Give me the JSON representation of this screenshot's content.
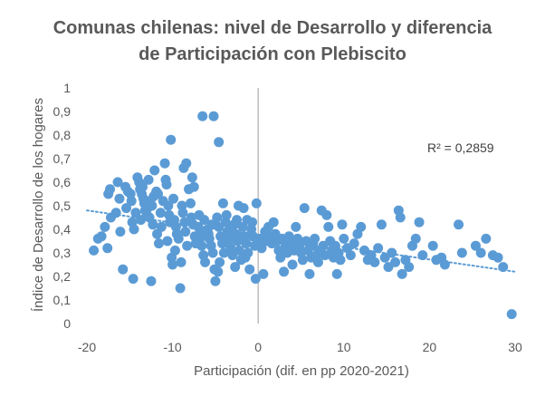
{
  "chart_data": {
    "type": "scatter",
    "title_lines": [
      "Comunas chilenas: nivel de Desarrollo y diferencia",
      "de Participación con Plebiscito"
    ],
    "xlabel": "Participación (dif. en pp 2020-2021)",
    "ylabel": "Índice de Desarrollo de los hogares",
    "xlim": [
      -20,
      30
    ],
    "ylim": [
      0,
      1
    ],
    "x_ticks": [
      -20,
      -10,
      0,
      10,
      20,
      30
    ],
    "x_tick_labels": [
      "-20",
      "-10",
      "0",
      "10",
      "20",
      "30"
    ],
    "y_ticks": [
      0,
      0.1,
      0.2,
      0.3,
      0.4,
      0.5,
      0.6,
      0.7,
      0.8,
      0.9,
      1
    ],
    "y_tick_labels": [
      "0",
      "0,1",
      "0,2",
      "0,3",
      "0,4",
      "0,5",
      "0,6",
      "0,7",
      "0,8",
      "0,9",
      "1"
    ],
    "grid": false,
    "zero_line_x": 0,
    "annotation": "R² = 0,2859",
    "marker_color": "#5B9BD5",
    "trendline": {
      "style": "dotted",
      "color": "#5B9BD5",
      "x": [
        -20,
        30
      ],
      "y": [
        0.48,
        0.22
      ]
    },
    "points": [
      [
        -6.5,
        0.88
      ],
      [
        -5.2,
        0.88
      ],
      [
        -4.6,
        0.77
      ],
      [
        -10.2,
        0.78
      ],
      [
        -19.2,
        0.31
      ],
      [
        -18.7,
        0.36
      ],
      [
        -18.3,
        0.37
      ],
      [
        -17.6,
        0.32
      ],
      [
        -17.9,
        0.41
      ],
      [
        -17.2,
        0.45
      ],
      [
        -17.5,
        0.55
      ],
      [
        -17.3,
        0.57
      ],
      [
        -16.4,
        0.6
      ],
      [
        -16.2,
        0.53
      ],
      [
        -16.6,
        0.47
      ],
      [
        -16.1,
        0.39
      ],
      [
        -15.8,
        0.23
      ],
      [
        -15.5,
        0.58
      ],
      [
        -15.2,
        0.56
      ],
      [
        -15.4,
        0.49
      ],
      [
        -14.9,
        0.55
      ],
      [
        -14.7,
        0.43
      ],
      [
        -14.5,
        0.4
      ],
      [
        -14.3,
        0.47
      ],
      [
        -14.8,
        0.52
      ],
      [
        -14.6,
        0.19
      ],
      [
        -14.1,
        0.62
      ],
      [
        -13.9,
        0.6
      ],
      [
        -13.8,
        0.57
      ],
      [
        -13.6,
        0.55
      ],
      [
        -13.4,
        0.53
      ],
      [
        -13.3,
        0.51
      ],
      [
        -13.2,
        0.48
      ],
      [
        -13.0,
        0.46
      ],
      [
        -13.7,
        0.44
      ],
      [
        -13.5,
        0.58
      ],
      [
        -12.8,
        0.61
      ],
      [
        -12.6,
        0.52
      ],
      [
        -12.9,
        0.49
      ],
      [
        -12.4,
        0.5
      ],
      [
        -12.2,
        0.54
      ],
      [
        -12.7,
        0.45
      ],
      [
        -12.3,
        0.42
      ],
      [
        -12.5,
        0.18
      ],
      [
        -12.1,
        0.65
      ],
      [
        -11.9,
        0.56
      ],
      [
        -11.8,
        0.38
      ],
      [
        -11.6,
        0.34
      ],
      [
        -11.4,
        0.47
      ],
      [
        -11.3,
        0.41
      ],
      [
        -11.1,
        0.52
      ],
      [
        -11.7,
        0.55
      ],
      [
        -10.9,
        0.68
      ],
      [
        -10.8,
        0.61
      ],
      [
        -10.7,
        0.59
      ],
      [
        -10.5,
        0.5
      ],
      [
        -10.4,
        0.46
      ],
      [
        -10.3,
        0.43
      ],
      [
        -10.6,
        0.35
      ],
      [
        -10.1,
        0.28
      ],
      [
        -10.0,
        0.25
      ],
      [
        -9.9,
        0.53
      ],
      [
        -9.8,
        0.44
      ],
      [
        -9.6,
        0.41
      ],
      [
        -9.5,
        0.38
      ],
      [
        -9.3,
        0.36
      ],
      [
        -9.7,
        0.31
      ],
      [
        -9.1,
        0.15
      ],
      [
        -9.0,
        0.26
      ],
      [
        -8.9,
        0.5
      ],
      [
        -8.8,
        0.47
      ],
      [
        -8.6,
        0.43
      ],
      [
        -8.5,
        0.39
      ],
      [
        -8.3,
        0.33
      ],
      [
        -8.7,
        0.66
      ],
      [
        -8.4,
        0.68
      ],
      [
        -8.1,
        0.57
      ],
      [
        -7.9,
        0.51
      ],
      [
        -7.8,
        0.45
      ],
      [
        -7.6,
        0.42
      ],
      [
        -7.4,
        0.37
      ],
      [
        -7.3,
        0.34
      ],
      [
        -7.7,
        0.62
      ],
      [
        -7.5,
        0.58
      ],
      [
        -7.0,
        0.41
      ],
      [
        -6.8,
        0.36
      ],
      [
        -6.6,
        0.33
      ],
      [
        -6.4,
        0.29
      ],
      [
        -6.2,
        0.26
      ],
      [
        -6.9,
        0.46
      ],
      [
        -6.7,
        0.39
      ],
      [
        -6.3,
        0.44
      ],
      [
        -5.9,
        0.4
      ],
      [
        -5.7,
        0.36
      ],
      [
        -5.5,
        0.33
      ],
      [
        -5.3,
        0.3
      ],
      [
        -5.1,
        0.23
      ],
      [
        -5.0,
        0.18
      ],
      [
        -5.4,
        0.42
      ],
      [
        -5.8,
        0.38
      ],
      [
        -4.8,
        0.45
      ],
      [
        -4.6,
        0.41
      ],
      [
        -4.4,
        0.37
      ],
      [
        -4.2,
        0.34
      ],
      [
        -4.0,
        0.3
      ],
      [
        -4.7,
        0.22
      ],
      [
        -4.1,
        0.51
      ],
      [
        -4.5,
        0.26
      ],
      [
        -3.8,
        0.43
      ],
      [
        -3.6,
        0.39
      ],
      [
        -3.4,
        0.36
      ],
      [
        -3.2,
        0.32
      ],
      [
        -3.0,
        0.29
      ],
      [
        -3.7,
        0.46
      ],
      [
        -3.3,
        0.4
      ],
      [
        -3.5,
        0.34
      ],
      [
        -2.8,
        0.42
      ],
      [
        -2.6,
        0.38
      ],
      [
        -2.4,
        0.35
      ],
      [
        -2.2,
        0.31
      ],
      [
        -2.0,
        0.27
      ],
      [
        -2.7,
        0.24
      ],
      [
        -2.3,
        0.5
      ],
      [
        -2.5,
        0.44
      ],
      [
        -1.8,
        0.41
      ],
      [
        -1.6,
        0.37
      ],
      [
        -1.4,
        0.34
      ],
      [
        -1.2,
        0.3
      ],
      [
        -1.0,
        0.23
      ],
      [
        -1.7,
        0.49
      ],
      [
        -1.3,
        0.44
      ],
      [
        -1.5,
        0.28
      ],
      [
        -0.8,
        0.4
      ],
      [
        -0.6,
        0.37
      ],
      [
        -0.4,
        0.33
      ],
      [
        -0.2,
        0.51
      ],
      [
        -0.3,
        0.19
      ],
      [
        -0.7,
        0.43
      ],
      [
        0.2,
        0.36
      ],
      [
        0.4,
        0.32
      ],
      [
        0.6,
        0.21
      ],
      [
        0.8,
        0.39
      ],
      [
        1.0,
        0.35
      ],
      [
        1.2,
        0.41
      ],
      [
        1.4,
        0.37
      ],
      [
        1.6,
        0.34
      ],
      [
        1.8,
        0.43
      ],
      [
        2.0,
        0.38
      ],
      [
        2.2,
        0.35
      ],
      [
        2.4,
        0.31
      ],
      [
        2.6,
        0.28
      ],
      [
        2.8,
        0.36
      ],
      [
        3.0,
        0.22
      ],
      [
        3.2,
        0.33
      ],
      [
        3.4,
        0.3
      ],
      [
        3.6,
        0.37
      ],
      [
        3.8,
        0.34
      ],
      [
        4.0,
        0.25
      ],
      [
        4.2,
        0.31
      ],
      [
        4.4,
        0.41
      ],
      [
        4.6,
        0.36
      ],
      [
        4.8,
        0.33
      ],
      [
        5.0,
        0.3
      ],
      [
        5.2,
        0.27
      ],
      [
        5.4,
        0.49
      ],
      [
        5.6,
        0.35
      ],
      [
        5.8,
        0.31
      ],
      [
        6.0,
        0.21
      ],
      [
        6.2,
        0.28
      ],
      [
        6.4,
        0.33
      ],
      [
        6.6,
        0.36
      ],
      [
        6.8,
        0.29
      ],
      [
        7.0,
        0.26
      ],
      [
        7.2,
        0.31
      ],
      [
        7.4,
        0.48
      ],
      [
        7.6,
        0.33
      ],
      [
        7.8,
        0.29
      ],
      [
        8.0,
        0.46
      ],
      [
        8.2,
        0.41
      ],
      [
        8.4,
        0.35
      ],
      [
        8.6,
        0.31
      ],
      [
        8.8,
        0.28
      ],
      [
        9.0,
        0.33
      ],
      [
        9.2,
        0.21
      ],
      [
        9.4,
        0.3
      ],
      [
        9.6,
        0.27
      ],
      [
        9.8,
        0.42
      ],
      [
        10.0,
        0.36
      ],
      [
        10.4,
        0.32
      ],
      [
        10.8,
        0.29
      ],
      [
        11.2,
        0.34
      ],
      [
        11.6,
        0.38
      ],
      [
        12.0,
        0.41
      ],
      [
        12.4,
        0.31
      ],
      [
        12.8,
        0.27
      ],
      [
        13.2,
        0.29
      ],
      [
        13.6,
        0.26
      ],
      [
        14.0,
        0.32
      ],
      [
        14.4,
        0.42
      ],
      [
        14.8,
        0.28
      ],
      [
        15.2,
        0.24
      ],
      [
        15.6,
        0.3
      ],
      [
        16.0,
        0.26
      ],
      [
        16.4,
        0.48
      ],
      [
        16.6,
        0.45
      ],
      [
        16.8,
        0.21
      ],
      [
        17.2,
        0.27
      ],
      [
        17.6,
        0.24
      ],
      [
        18.0,
        0.33
      ],
      [
        18.4,
        0.36
      ],
      [
        18.8,
        0.43
      ],
      [
        19.2,
        0.29
      ],
      [
        20.4,
        0.33
      ],
      [
        20.8,
        0.27
      ],
      [
        21.4,
        0.28
      ],
      [
        21.8,
        0.25
      ],
      [
        23.4,
        0.42
      ],
      [
        23.8,
        0.3
      ],
      [
        25.4,
        0.33
      ],
      [
        26.0,
        0.3
      ],
      [
        26.6,
        0.36
      ],
      [
        27.4,
        0.29
      ],
      [
        28.0,
        0.28
      ],
      [
        28.6,
        0.24
      ],
      [
        29.6,
        0.04
      ]
    ]
  }
}
